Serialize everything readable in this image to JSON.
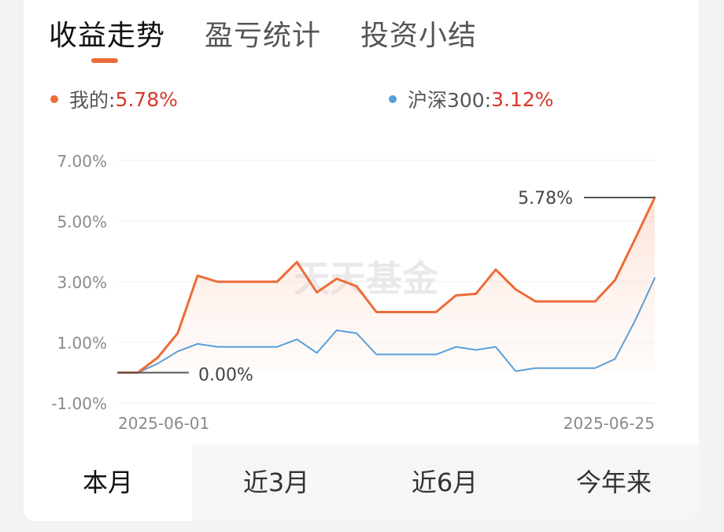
{
  "tabs": [
    {
      "label": "收益走势",
      "active": true
    },
    {
      "label": "盈亏统计",
      "active": false
    },
    {
      "label": "投资小结",
      "active": false
    }
  ],
  "legend": [
    {
      "name": "我的:",
      "value": "5.78%",
      "color": "#ec6c38"
    },
    {
      "name": "沪深300:",
      "value": "3.12%",
      "color": "#5a9fd8"
    }
  ],
  "watermark": "天天基金",
  "periods": [
    {
      "label": "本月",
      "active": true
    },
    {
      "label": "近3月",
      "active": false
    },
    {
      "label": "近6月",
      "active": false
    },
    {
      "label": "今年来",
      "active": false
    }
  ],
  "chart_data": {
    "type": "line",
    "y_ticks": [
      "7.00%",
      "5.00%",
      "3.00%",
      "1.00%",
      "-1.00%"
    ],
    "y_tick_values": [
      7,
      5,
      3,
      1,
      -1
    ],
    "ylim": [
      -1,
      7
    ],
    "x_labels": [
      "2025-06-01",
      "2025-06-25"
    ],
    "grid": true,
    "annotations": [
      {
        "text": "5.78%",
        "series": 0,
        "point": "last"
      },
      {
        "text": "0.00%",
        "series": 0,
        "point": "first"
      }
    ],
    "series": [
      {
        "name": "我的",
        "color": "#ec6c38",
        "values": [
          0.0,
          0.0,
          0.5,
          1.3,
          3.2,
          3.0,
          3.0,
          3.0,
          3.0,
          3.65,
          2.65,
          3.1,
          2.85,
          2.0,
          2.0,
          2.0,
          2.0,
          2.55,
          2.6,
          3.4,
          2.75,
          2.35,
          2.35,
          2.35,
          2.35,
          3.05,
          4.4,
          5.78
        ]
      },
      {
        "name": "沪深300",
        "color": "#5a9fd8",
        "values": [
          0.0,
          0.0,
          0.3,
          0.7,
          0.95,
          0.85,
          0.85,
          0.85,
          0.85,
          1.1,
          0.65,
          1.4,
          1.3,
          0.6,
          0.6,
          0.6,
          0.6,
          0.85,
          0.75,
          0.85,
          0.05,
          0.15,
          0.15,
          0.15,
          0.15,
          0.45,
          1.7,
          3.12
        ]
      }
    ]
  }
}
